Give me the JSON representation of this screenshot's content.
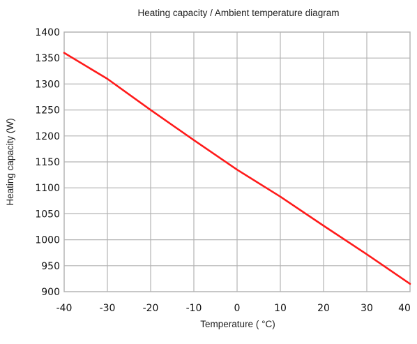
{
  "chart_data": {
    "type": "line",
    "title": "Heating capacity / Ambient temperature diagram",
    "xlabel": "Temperature ( °C)",
    "ylabel": "Heating capacity (W)",
    "xlim": [
      -40,
      40
    ],
    "ylim": [
      900,
      1400
    ],
    "x_ticks": [
      "-40",
      "-30",
      "-20",
      "-10",
      "0",
      "10",
      "20",
      "30",
      "40"
    ],
    "y_ticks": [
      "1400",
      "1350",
      "1300",
      "1250",
      "1200",
      "1150",
      "1100",
      "1050",
      "1000",
      "950",
      "900"
    ],
    "grid": true,
    "legend": "none",
    "series": [
      {
        "color": "#ff1a1a",
        "x": [
          -40,
          -30,
          -20,
          -10,
          0,
          10,
          20,
          30,
          40
        ],
        "y": [
          1360,
          1310,
          1250,
          1192,
          1135,
          1083,
          1027,
          972,
          915
        ]
      }
    ]
  }
}
